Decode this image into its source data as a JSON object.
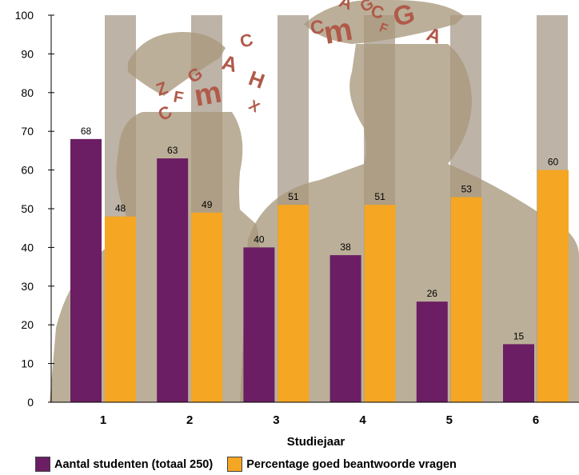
{
  "chart_data": {
    "type": "bar",
    "xlabel": "Studiejaar",
    "ylabel": "",
    "ylim": [
      0,
      100
    ],
    "yticks": [
      0,
      10,
      20,
      30,
      40,
      50,
      60,
      70,
      80,
      90,
      100
    ],
    "categories": [
      "1",
      "2",
      "3",
      "4",
      "5",
      "6"
    ],
    "series": [
      {
        "name": "Aantal studenten (totaal 250)",
        "color": "#6b1e63",
        "values": [
          68,
          63,
          40,
          38,
          26,
          15
        ]
      },
      {
        "name": "Percentage goed beantwoorde vragen",
        "color": "#f5a623",
        "values": [
          48,
          49,
          51,
          51,
          53,
          60
        ]
      }
    ],
    "grid": false,
    "legend_position": "bottom-left"
  },
  "illustration": {
    "silhouette_color": "#a8987c",
    "stripe_color": "#bdb3a6",
    "letter_color": "#b05a4a",
    "letters_left": [
      "Z",
      "F",
      "G",
      "m",
      "A",
      "C",
      "H",
      "X",
      "C"
    ],
    "letters_right": [
      "C",
      "m",
      "A",
      "G",
      "C",
      "F",
      "G",
      "A"
    ]
  }
}
